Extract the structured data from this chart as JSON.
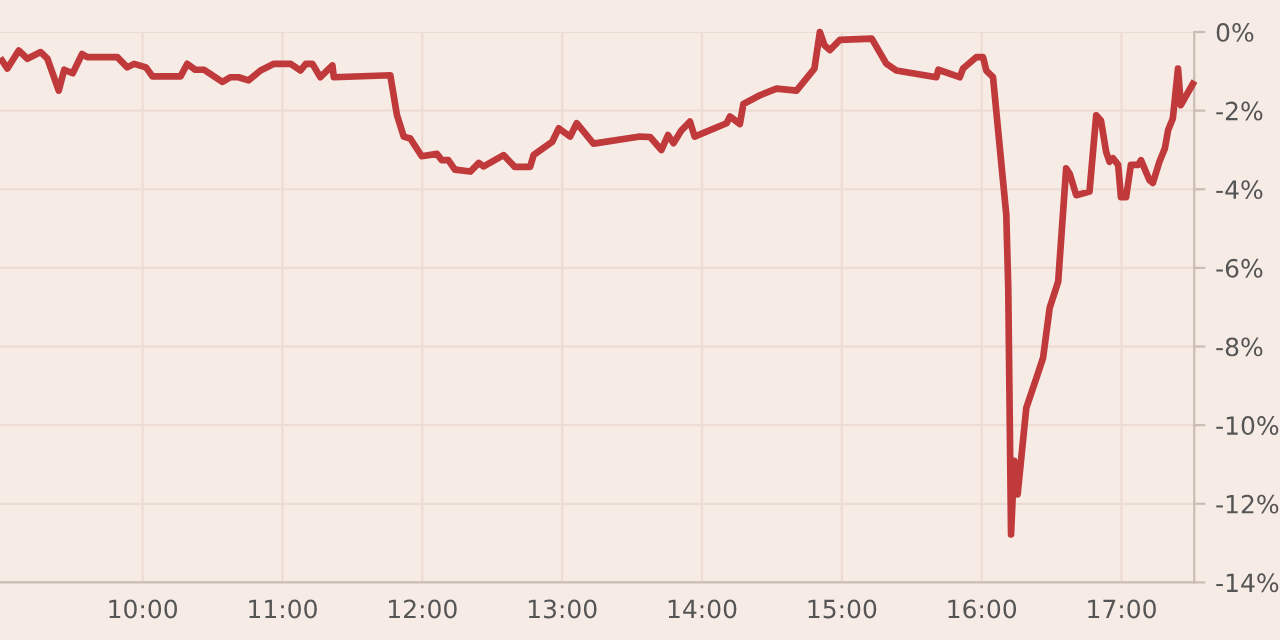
{
  "chart_data": {
    "type": "line",
    "x": [
      8.995,
      9.033,
      9.114,
      9.176,
      9.271,
      9.319,
      9.4,
      9.439,
      9.5,
      9.567,
      9.604,
      9.819,
      9.89,
      9.939,
      10.024,
      10.071,
      10.271,
      10.319,
      10.376,
      10.439,
      10.571,
      10.629,
      10.686,
      10.757,
      10.843,
      10.939,
      11.057,
      11.129,
      11.167,
      11.214,
      11.271,
      11.357,
      11.367,
      11.771,
      11.819,
      11.867,
      11.914,
      11.996,
      12.104,
      12.139,
      12.186,
      12.233,
      12.343,
      12.404,
      12.439,
      12.581,
      12.661,
      12.771,
      12.796,
      12.929,
      12.976,
      13.057,
      13.104,
      13.224,
      13.557,
      13.629,
      13.71,
      13.757,
      13.796,
      13.853,
      13.914,
      13.947,
      14.176,
      14.2,
      14.271,
      14.296,
      14.414,
      14.533,
      14.676,
      14.804,
      14.843,
      14.876,
      14.914,
      14.986,
      15.214,
      15.319,
      15.39,
      15.676,
      15.69,
      15.843,
      15.867,
      15.961,
      16.01,
      16.033,
      16.081,
      16.176,
      16.19,
      16.21,
      16.233,
      16.257,
      16.319,
      16.4,
      16.439,
      16.486,
      16.547,
      16.604,
      16.629,
      16.676,
      16.771,
      16.819,
      16.853,
      16.89,
      16.914,
      16.939,
      16.976,
      16.996,
      17.033,
      17.067,
      17.119,
      17.139,
      17.2,
      17.224,
      17.271,
      17.31,
      17.333,
      17.367,
      17.404,
      17.424,
      17.51
    ],
    "series": [
      {
        "color": "#c0393b",
        "values": [
          -0.73,
          -0.93,
          -0.47,
          -0.68,
          -0.51,
          -0.68,
          -1.49,
          -0.96,
          -1.05,
          -0.56,
          -0.64,
          -0.64,
          -0.9,
          -0.81,
          -0.9,
          -1.13,
          -1.13,
          -0.81,
          -0.96,
          -0.96,
          -1.27,
          -1.15,
          -1.15,
          -1.23,
          -0.98,
          -0.81,
          -0.81,
          -0.98,
          -0.81,
          -0.81,
          -1.15,
          -0.85,
          -1.15,
          -1.1,
          -2.12,
          -2.66,
          -2.71,
          -3.16,
          -3.1,
          -3.26,
          -3.26,
          -3.5,
          -3.55,
          -3.33,
          -3.42,
          -3.13,
          -3.43,
          -3.43,
          -3.13,
          -2.79,
          -2.45,
          -2.66,
          -2.32,
          -2.84,
          -2.66,
          -2.67,
          -3.0,
          -2.62,
          -2.83,
          -2.5,
          -2.28,
          -2.66,
          -2.32,
          -2.15,
          -2.34,
          -1.83,
          -1.61,
          -1.44,
          -1.49,
          -0.93,
          0,
          -0.34,
          -0.46,
          -0.2,
          -0.17,
          -0.81,
          -0.98,
          -1.15,
          -0.96,
          -1.15,
          -0.93,
          -0.64,
          -0.64,
          -0.98,
          -1.15,
          -4.65,
          -6.51,
          -12.78,
          -10.91,
          -11.76,
          -9.56,
          -8.71,
          -8.29,
          -7.02,
          -6.35,
          -3.47,
          -3.6,
          -4.15,
          -4.06,
          -2.12,
          -2.25,
          -3.05,
          -3.3,
          -3.21,
          -3.38,
          -4.2,
          -4.2,
          -3.38,
          -3.38,
          -3.26,
          -3.77,
          -3.84,
          -3.3,
          -2.96,
          -2.5,
          -2.2,
          -0.93,
          -1.86,
          -1.32
        ]
      }
    ],
    "xlim": [
      8.98,
      17.52
    ],
    "xticks": [
      {
        "value": 10,
        "label": "10:00"
      },
      {
        "value": 11,
        "label": "11:00"
      },
      {
        "value": 12,
        "label": "12:00"
      },
      {
        "value": 13,
        "label": "13:00"
      },
      {
        "value": 14,
        "label": "14:00"
      },
      {
        "value": 15,
        "label": "15:00"
      },
      {
        "value": 16,
        "label": "16:00"
      },
      {
        "value": 17,
        "label": "17:00"
      }
    ],
    "ylim": [
      -14,
      0
    ],
    "yticks": [
      {
        "value": 0,
        "label": "0%"
      },
      {
        "value": -2,
        "label": "-2%"
      },
      {
        "value": -4,
        "label": "-4%"
      },
      {
        "value": -6,
        "label": "-6%"
      },
      {
        "value": -8,
        "label": "-8%"
      },
      {
        "value": -10,
        "label": "-10%"
      },
      {
        "value": -12,
        "label": "-12%"
      },
      {
        "value": -14,
        "label": "-14%"
      }
    ],
    "grid": true,
    "marker": "none",
    "line_style": "solid"
  }
}
